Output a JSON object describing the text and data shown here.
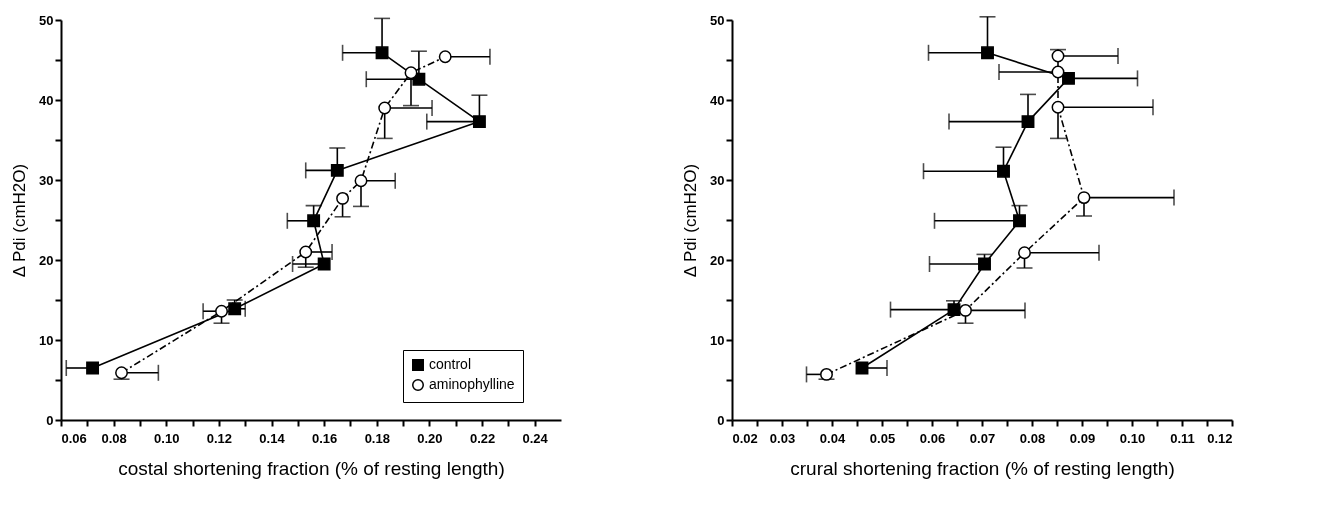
{
  "chart_data": [
    {
      "type": "line",
      "xlabel": "costal shortening fraction (% of resting length)",
      "ylabel": "Δ Pdi (cmH2O)",
      "xlim": [
        0.06,
        0.25
      ],
      "ylim": [
        0,
        50
      ],
      "xticks": [
        {
          "value": 0.06,
          "label": "0.06"
        },
        {
          "value": 0.07,
          "label": null
        },
        {
          "value": 0.08,
          "label": "0.08"
        },
        {
          "value": 0.09,
          "label": null
        },
        {
          "value": 0.1,
          "label": "0.10"
        },
        {
          "value": 0.11,
          "label": null
        },
        {
          "value": 0.12,
          "label": "0.12"
        },
        {
          "value": 0.13,
          "label": null
        },
        {
          "value": 0.14,
          "label": "0.14"
        },
        {
          "value": 0.15,
          "label": null
        },
        {
          "value": 0.16,
          "label": "0.16"
        },
        {
          "value": 0.17,
          "label": null
        },
        {
          "value": 0.18,
          "label": "0.18"
        },
        {
          "value": 0.19,
          "label": null
        },
        {
          "value": 0.2,
          "label": "0.20"
        },
        {
          "value": 0.21,
          "label": null
        },
        {
          "value": 0.22,
          "label": "0.22"
        },
        {
          "value": 0.23,
          "label": null
        },
        {
          "value": 0.24,
          "label": "0.24"
        }
      ],
      "yticks": [
        0,
        {
          "value": 5,
          "label": null
        },
        10,
        {
          "value": 15,
          "label": null
        },
        20,
        {
          "value": 25,
          "label": null
        },
        30,
        {
          "value": 35,
          "label": null
        },
        40,
        {
          "value": 45,
          "label": null
        },
        50
      ],
      "grid": false,
      "legend": "bottom right",
      "series": [
        {
          "name": "control",
          "color": "#000000",
          "marker": "square",
          "line_style": "solid",
          "x": [
            0.072,
            0.126,
            0.16,
            0.156,
            0.165,
            0.219,
            0.196,
            0.182
          ],
          "values": [
            6.5,
            13.9,
            19.5,
            24.9,
            31.2,
            37.3,
            42.6,
            45.9
          ],
          "xerrors": [
            [
              0.062,
              0.072
            ],
            [
              0.126,
              0.13
            ],
            [
              0.148,
              0.16
            ],
            [
              0.146,
              0.156
            ],
            [
              0.153,
              0.165
            ],
            [
              0.199,
              0.219
            ],
            [
              0.176,
              0.196
            ],
            [
              0.167,
              0.182
            ]
          ],
          "errors": [
            null,
            [
              13.9,
              15.0
            ],
            null,
            [
              24.9,
              26.8
            ],
            [
              31.2,
              34.0
            ],
            [
              37.3,
              40.6
            ],
            [
              42.6,
              46.1
            ],
            [
              45.9,
              50.2
            ]
          ]
        },
        {
          "name": "aminophylline",
          "color": "#000000",
          "marker": "circle",
          "line_style": "dashed",
          "x": [
            0.083,
            0.121,
            0.153,
            0.167,
            0.174,
            0.183,
            0.193,
            0.206
          ],
          "values": [
            5.9,
            13.6,
            21.0,
            27.7,
            29.9,
            39.0,
            43.4,
            45.4
          ],
          "xerrors": [
            [
              0.083,
              0.097
            ],
            [
              0.114,
              0.121
            ],
            [
              0.153,
              0.163
            ],
            null,
            [
              0.174,
              0.187
            ],
            [
              0.183,
              0.201
            ],
            null,
            [
              0.206,
              0.223
            ]
          ],
          "errors": [
            [
              5.1,
              5.9
            ],
            [
              12.1,
              13.6
            ],
            [
              19.1,
              21.0
            ],
            [
              25.4,
              27.7
            ],
            [
              26.7,
              29.9
            ],
            [
              35.2,
              39.0
            ],
            [
              39.3,
              43.4
            ],
            null
          ]
        }
      ]
    },
    {
      "type": "line",
      "xlabel": "crural shortening fraction (% of resting length)",
      "ylabel": "Δ Pdi (cmH2O)",
      "xlim": [
        0.02,
        0.12
      ],
      "ylim": [
        0,
        50
      ],
      "xticks": [
        {
          "value": 0.02,
          "label": "0.02"
        },
        {
          "value": 0.025,
          "label": null
        },
        {
          "value": 0.03,
          "label": "0.03"
        },
        {
          "value": 0.035,
          "label": null
        },
        {
          "value": 0.04,
          "label": "0.04"
        },
        {
          "value": 0.045,
          "label": null
        },
        {
          "value": 0.05,
          "label": "0.05"
        },
        {
          "value": 0.055,
          "label": null
        },
        {
          "value": 0.06,
          "label": "0.06"
        },
        {
          "value": 0.065,
          "label": null
        },
        {
          "value": 0.07,
          "label": "0.07"
        },
        {
          "value": 0.075,
          "label": null
        },
        {
          "value": 0.08,
          "label": "0.08"
        },
        {
          "value": 0.085,
          "label": null
        },
        {
          "value": 0.09,
          "label": "0.09"
        },
        {
          "value": 0.095,
          "label": null
        },
        {
          "value": 0.1,
          "label": "0.10"
        },
        {
          "value": 0.105,
          "label": null
        },
        {
          "value": 0.11,
          "label": "0.11"
        },
        {
          "value": 0.115,
          "label": null
        },
        {
          "value": 0.12,
          "label": "0.12"
        }
      ],
      "yticks": [
        0,
        {
          "value": 5,
          "label": null
        },
        10,
        {
          "value": 15,
          "label": null
        },
        20,
        {
          "value": 25,
          "label": null
        },
        30,
        {
          "value": 35,
          "label": null
        },
        40,
        {
          "value": 45,
          "label": null
        },
        50
      ],
      "grid": false,
      "legend": "bottom right",
      "series": [
        {
          "name": "control",
          "color": "#000000",
          "marker": "square",
          "line_style": "solid",
          "x": [
            0.046,
            0.0644,
            0.0705,
            0.0775,
            0.0743,
            0.0792,
            0.0873,
            0.0711
          ],
          "values": [
            6.5,
            13.8,
            19.5,
            24.9,
            31.1,
            37.3,
            42.7,
            45.9
          ],
          "xerrors": [
            [
              0.046,
              0.051
            ],
            [
              0.0517,
              0.0644
            ],
            [
              0.0595,
              0.0705
            ],
            [
              0.0605,
              0.0775
            ],
            [
              0.0583,
              0.0743
            ],
            [
              0.0634,
              0.0792
            ],
            [
              0.0873,
              0.1011
            ],
            [
              0.0593,
              0.0711
            ]
          ],
          "errors": [
            null,
            [
              13.8,
              14.9
            ],
            [
              19.5,
              20.7
            ],
            [
              24.9,
              26.8
            ],
            [
              31.1,
              34.1
            ],
            [
              37.3,
              40.7
            ],
            null,
            [
              45.9,
              50.4
            ]
          ]
        },
        {
          "name": "aminophylline",
          "color": "#000000",
          "marker": "circle",
          "line_style": "dashed",
          "x": [
            0.0389,
            0.0667,
            0.0785,
            0.0904,
            0.0852,
            0.0852,
            0.0852
          ],
          "values": [
            5.7,
            13.7,
            20.9,
            27.8,
            39.1,
            43.5,
            45.5
          ],
          "xerrors": [
            [
              0.0349,
              0.0389
            ],
            [
              0.0667,
              0.0786
            ],
            [
              0.0785,
              0.0934
            ],
            [
              0.0904,
              0.1084
            ],
            [
              0.0852,
              0.1042
            ],
            [
              0.0734,
              0.0852
            ],
            [
              0.0852,
              0.0972
            ]
          ],
          "errors": [
            [
              5.1,
              5.7
            ],
            [
              12.1,
              13.7
            ],
            [
              19.0,
              20.9
            ],
            [
              25.5,
              27.8
            ],
            [
              35.2,
              39.1
            ],
            null,
            [
              45.5,
              46.3
            ]
          ]
        }
      ]
    }
  ]
}
